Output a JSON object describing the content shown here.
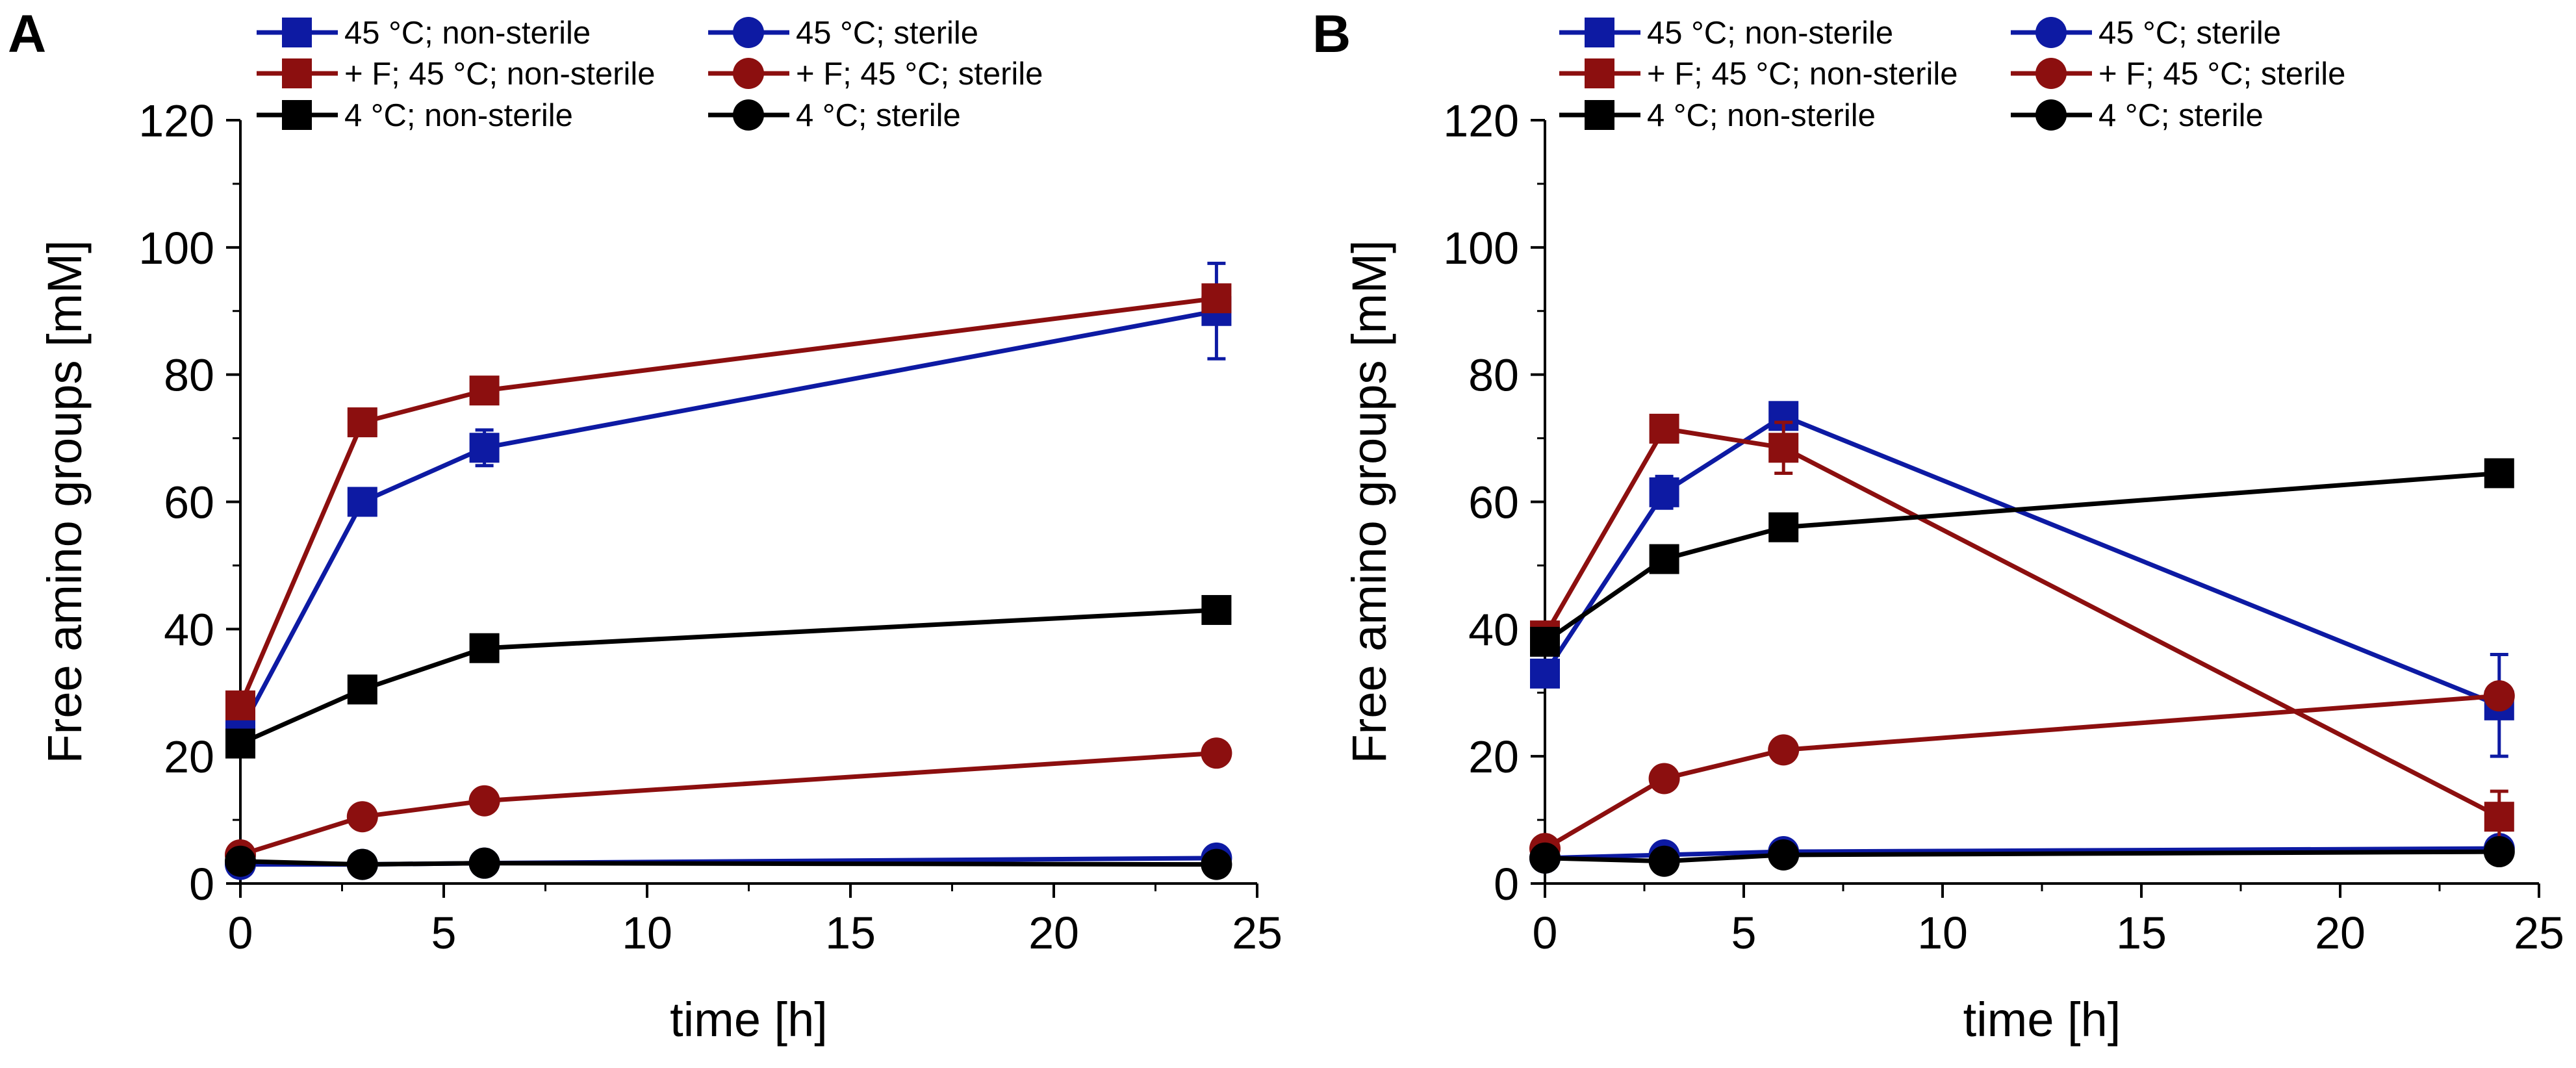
{
  "colors": {
    "blue": "#0d1aa3",
    "red": "#8c0f0f",
    "black": "#000000"
  },
  "chart_data": [
    {
      "panel_label": "A",
      "type": "line",
      "xlabel": "time [h]",
      "ylabel": "Free amino groups [mM]",
      "xlim": [
        0,
        25
      ],
      "ylim": [
        0,
        120
      ],
      "xticks": [
        0,
        5,
        10,
        15,
        20,
        25
      ],
      "yticks": [
        0,
        20,
        40,
        60,
        80,
        100,
        120
      ],
      "grid": false,
      "legend_position": "top",
      "series": [
        {
          "name": "45 °C; non-sterile",
          "marker": "square",
          "color": "blue",
          "x": [
            0,
            3,
            6,
            24
          ],
          "y": [
            24,
            60,
            68.5,
            90
          ],
          "err": [
            2,
            1.5,
            2.8,
            7.5
          ]
        },
        {
          "name": "45 °C; sterile",
          "marker": "circle",
          "color": "blue",
          "x": [
            0,
            3,
            6,
            24
          ],
          "y": [
            3,
            3,
            3.2,
            4
          ],
          "err": [
            0.5,
            0.5,
            0.5,
            0.5
          ]
        },
        {
          "name": "+ F; 45 °C; non-sterile",
          "marker": "square",
          "color": "red",
          "x": [
            0,
            3,
            6,
            24
          ],
          "y": [
            28,
            72.5,
            77.5,
            92
          ],
          "err": [
            1,
            1,
            1,
            1.5
          ]
        },
        {
          "name": "+ F; 45 °C; sterile",
          "marker": "circle",
          "color": "red",
          "x": [
            0,
            3,
            6,
            24
          ],
          "y": [
            4.5,
            10.5,
            13,
            20.5
          ],
          "err": [
            0.5,
            0.8,
            0.8,
            0.8
          ]
        },
        {
          "name": "4 °C; non-sterile",
          "marker": "square",
          "color": "black",
          "x": [
            0,
            3,
            6,
            24
          ],
          "y": [
            22,
            30.5,
            37,
            43
          ],
          "err": [
            1,
            1.5,
            1.5,
            1.5
          ]
        },
        {
          "name": "4 °C; sterile",
          "marker": "circle",
          "color": "black",
          "x": [
            0,
            3,
            6,
            24
          ],
          "y": [
            3.5,
            3,
            3.2,
            3
          ],
          "err": [
            0.5,
            0.5,
            0.5,
            0.5
          ]
        }
      ]
    },
    {
      "panel_label": "B",
      "type": "line",
      "xlabel": "time [h]",
      "ylabel": "Free amino groups [mM]",
      "xlim": [
        0,
        25
      ],
      "ylim": [
        0,
        120
      ],
      "xticks": [
        0,
        5,
        10,
        15,
        20,
        25
      ],
      "yticks": [
        0,
        20,
        40,
        60,
        80,
        100,
        120
      ],
      "grid": false,
      "legend_position": "top",
      "series": [
        {
          "name": "45 °C; non-sterile",
          "marker": "square",
          "color": "blue",
          "x": [
            0,
            3,
            6,
            24
          ],
          "y": [
            33,
            61.5,
            73.5,
            28
          ],
          "err": [
            2,
            2.5,
            1.5,
            8
          ]
        },
        {
          "name": "45 °C; sterile",
          "marker": "circle",
          "color": "blue",
          "x": [
            0,
            3,
            6,
            24
          ],
          "y": [
            4,
            4.5,
            5,
            5.5
          ],
          "err": [
            0.5,
            0.5,
            0.5,
            0.5
          ]
        },
        {
          "name": "+ F; 45 °C; non-sterile",
          "marker": "square",
          "color": "red",
          "x": [
            0,
            3,
            6,
            24
          ],
          "y": [
            39,
            71.5,
            68.5,
            10.5
          ],
          "err": [
            1,
            1,
            4,
            4
          ]
        },
        {
          "name": "+ F; 45 °C; sterile",
          "marker": "circle",
          "color": "red",
          "x": [
            0,
            3,
            6,
            24
          ],
          "y": [
            5.5,
            16.5,
            21,
            29.5
          ],
          "err": [
            0.5,
            0.8,
            0.8,
            1
          ]
        },
        {
          "name": "4 °C; non-sterile",
          "marker": "square",
          "color": "black",
          "x": [
            0,
            3,
            6,
            24
          ],
          "y": [
            38,
            51,
            56,
            64.5
          ],
          "err": [
            1.5,
            1.5,
            1.5,
            1.5
          ]
        },
        {
          "name": "4 °C; sterile",
          "marker": "circle",
          "color": "black",
          "x": [
            0,
            3,
            6,
            24
          ],
          "y": [
            4,
            3.5,
            4.5,
            5
          ],
          "err": [
            0.5,
            0.5,
            0.5,
            0.5
          ]
        }
      ]
    }
  ]
}
